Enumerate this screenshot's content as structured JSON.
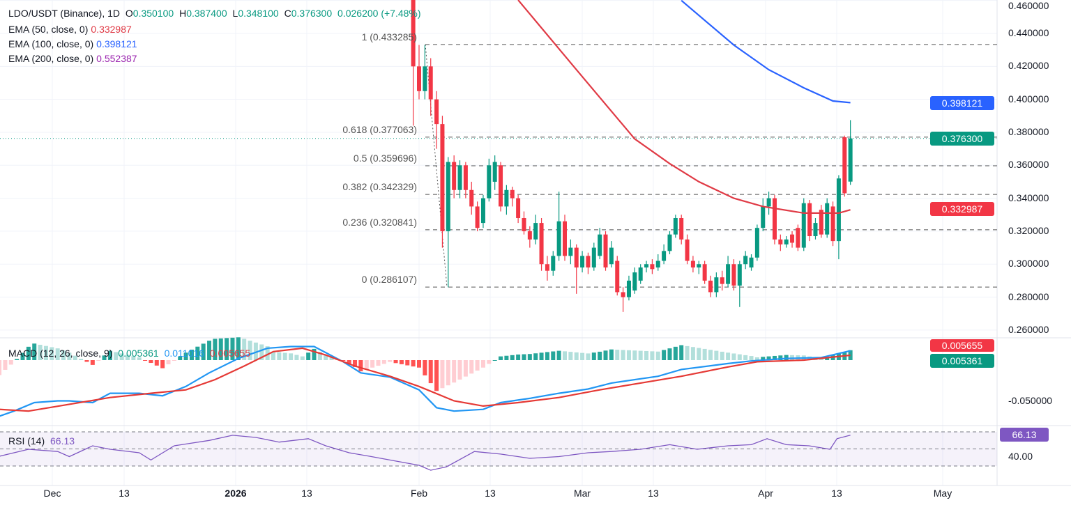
{
  "header": {
    "symbol": "LDO/USDT (Binance), 1D",
    "o_label": "O",
    "open": "0.350100",
    "h_label": "H",
    "high": "0.387400",
    "l_label": "L",
    "low": "0.348100",
    "c_label": "C",
    "close": "0.376300",
    "change": "0.026200 (+7.48%)"
  },
  "indicators": {
    "ema50": {
      "label": "EMA (50, close, 0)",
      "value": "0.332987"
    },
    "ema100": {
      "label": "EMA (100, close, 0)",
      "value": "0.398121"
    },
    "ema200": {
      "label": "EMA (200, close, 0)",
      "value": "0.552387"
    },
    "macd": {
      "label": "MACD (12, 26, close, 9)",
      "hist": "0.005361",
      "macd": "0.011016",
      "signal": "0.005655"
    },
    "rsi": {
      "label": "RSI (14)",
      "value": "66.13"
    }
  },
  "price_axis": [
    "0.460000",
    "0.440000",
    "0.420000",
    "0.400000",
    "0.380000",
    "0.360000",
    "0.340000",
    "0.320000",
    "0.300000",
    "0.280000",
    "0.260000"
  ],
  "badges": {
    "ema100": "0.398121",
    "last": "0.376300",
    "ema50": "0.332987",
    "macd_signal": "0.005655",
    "macd_hist": "0.005361",
    "rsi": "66.13"
  },
  "macd_axis": [
    "-0.050000"
  ],
  "rsi_axis": [
    "40.00"
  ],
  "time_axis": [
    "Dec",
    "13",
    "2026",
    "13",
    "Feb",
    "13",
    "Mar",
    "13",
    "Apr",
    "13",
    "May"
  ],
  "fib_levels": [
    {
      "label": "1 (0.433285)",
      "value": 0.433285
    },
    {
      "label": "0.618 (0.377063)",
      "value": 0.377063
    },
    {
      "label": "0.5 (0.359696)",
      "value": 0.359696
    },
    {
      "label": "0.382 (0.342329)",
      "value": 0.342329
    },
    {
      "label": "0.236 (0.320841)",
      "value": 0.320841
    },
    {
      "label": "0 (0.286107)",
      "value": 0.286107
    }
  ],
  "colors": {
    "up": "#089981",
    "down": "#f23645",
    "ema50": "#e03a45",
    "ema100": "#2962ff",
    "ema200": "#9c27b0",
    "macd": "#2196f3",
    "signal": "#e53935",
    "rsi": "#7e57c2"
  },
  "chart_data": {
    "type": "candlestick",
    "title": "LDO/USDT (Binance), 1D",
    "x_unit": "days since 2026-01-31",
    "ylim": [
      0.26,
      0.46
    ],
    "candles_ohlc": [
      [
        0.47,
        0.48,
        0.384,
        0.42
      ],
      [
        0.42,
        0.433,
        0.4,
        0.405
      ],
      [
        0.405,
        0.433,
        0.4,
        0.42
      ],
      [
        0.42,
        0.425,
        0.39,
        0.4
      ],
      [
        0.4,
        0.405,
        0.37,
        0.385
      ],
      [
        0.385,
        0.39,
        0.31,
        0.32
      ],
      [
        0.32,
        0.365,
        0.286,
        0.362
      ],
      [
        0.362,
        0.366,
        0.34,
        0.345
      ],
      [
        0.345,
        0.363,
        0.34,
        0.36
      ],
      [
        0.36,
        0.362,
        0.34,
        0.345
      ],
      [
        0.345,
        0.35,
        0.33,
        0.335
      ],
      [
        0.335,
        0.338,
        0.32,
        0.322
      ],
      [
        0.325,
        0.342,
        0.322,
        0.34
      ],
      [
        0.34,
        0.364,
        0.338,
        0.36
      ],
      [
        0.35,
        0.366,
        0.345,
        0.362
      ],
      [
        0.36,
        0.362,
        0.332,
        0.335
      ],
      [
        0.335,
        0.348,
        0.33,
        0.345
      ],
      [
        0.345,
        0.347,
        0.335,
        0.34
      ],
      [
        0.34,
        0.342,
        0.325,
        0.328
      ],
      [
        0.328,
        0.332,
        0.318,
        0.32
      ],
      [
        0.32,
        0.323,
        0.31,
        0.315
      ],
      [
        0.315,
        0.33,
        0.312,
        0.325
      ],
      [
        0.325,
        0.328,
        0.296,
        0.3
      ],
      [
        0.3,
        0.305,
        0.29,
        0.296
      ],
      [
        0.296,
        0.308,
        0.293,
        0.305
      ],
      [
        0.305,
        0.344,
        0.302,
        0.326
      ],
      [
        0.326,
        0.33,
        0.302,
        0.305
      ],
      [
        0.305,
        0.315,
        0.3,
        0.31
      ],
      [
        0.31,
        0.312,
        0.282,
        0.298
      ],
      [
        0.298,
        0.308,
        0.295,
        0.305
      ],
      [
        0.305,
        0.307,
        0.294,
        0.298
      ],
      [
        0.298,
        0.313,
        0.296,
        0.31
      ],
      [
        0.305,
        0.322,
        0.303,
        0.318
      ],
      [
        0.318,
        0.32,
        0.296,
        0.298
      ],
      [
        0.3,
        0.314,
        0.298,
        0.31
      ],
      [
        0.302,
        0.305,
        0.281,
        0.283
      ],
      [
        0.283,
        0.286,
        0.271,
        0.28
      ],
      [
        0.28,
        0.293,
        0.278,
        0.29
      ],
      [
        0.284,
        0.298,
        0.282,
        0.295
      ],
      [
        0.29,
        0.3,
        0.288,
        0.298
      ],
      [
        0.298,
        0.302,
        0.295,
        0.3
      ],
      [
        0.3,
        0.303,
        0.294,
        0.297
      ],
      [
        0.298,
        0.306,
        0.296,
        0.302
      ],
      [
        0.302,
        0.312,
        0.3,
        0.308
      ],
      [
        0.308,
        0.32,
        0.306,
        0.318
      ],
      [
        0.318,
        0.33,
        0.316,
        0.328
      ],
      [
        0.328,
        0.33,
        0.312,
        0.315
      ],
      [
        0.315,
        0.318,
        0.3,
        0.302
      ],
      [
        0.302,
        0.305,
        0.295,
        0.298
      ],
      [
        0.298,
        0.302,
        0.294,
        0.3
      ],
      [
        0.3,
        0.302,
        0.288,
        0.29
      ],
      [
        0.29,
        0.293,
        0.28,
        0.283
      ],
      [
        0.283,
        0.295,
        0.28,
        0.292
      ],
      [
        0.292,
        0.296,
        0.284,
        0.288
      ],
      [
        0.288,
        0.305,
        0.286,
        0.3
      ],
      [
        0.3,
        0.303,
        0.284,
        0.287
      ],
      [
        0.287,
        0.302,
        0.274,
        0.3
      ],
      [
        0.3,
        0.308,
        0.297,
        0.305
      ],
      [
        0.298,
        0.306,
        0.296,
        0.304
      ],
      [
        0.304,
        0.324,
        0.302,
        0.322
      ],
      [
        0.322,
        0.34,
        0.32,
        0.335
      ],
      [
        0.335,
        0.344,
        0.33,
        0.34
      ],
      [
        0.34,
        0.342,
        0.312,
        0.315
      ],
      [
        0.315,
        0.318,
        0.308,
        0.312
      ],
      [
        0.312,
        0.317,
        0.31,
        0.315
      ],
      [
        0.318,
        0.32,
        0.31,
        0.313
      ],
      [
        0.322,
        0.324,
        0.308,
        0.31
      ],
      [
        0.31,
        0.34,
        0.308,
        0.337
      ],
      [
        0.337,
        0.339,
        0.314,
        0.317
      ],
      [
        0.317,
        0.328,
        0.315,
        0.325
      ],
      [
        0.333,
        0.336,
        0.316,
        0.318
      ],
      [
        0.318,
        0.34,
        0.316,
        0.337
      ],
      [
        0.335,
        0.338,
        0.311,
        0.314
      ],
      [
        0.314,
        0.354,
        0.303,
        0.352
      ],
      [
        0.377,
        0.378,
        0.341,
        0.343
      ],
      [
        0.3501,
        0.3874,
        0.3481,
        0.3763
      ]
    ],
    "ema50": [
      [
        18,
        0.4603
      ],
      [
        28,
        0.418
      ],
      [
        38,
        0.376
      ],
      [
        44,
        0.361
      ],
      [
        49,
        0.35
      ],
      [
        55,
        0.34
      ],
      [
        60,
        0.335
      ],
      [
        67,
        0.331
      ],
      [
        73,
        0.331
      ],
      [
        75,
        0.333
      ]
    ],
    "ema100": [
      [
        46,
        0.46
      ],
      [
        55,
        0.433
      ],
      [
        61,
        0.418
      ],
      [
        67,
        0.407
      ],
      [
        72,
        0.399
      ],
      [
        75,
        0.398
      ]
    ],
    "macd_line": [
      [
        -71,
        -0.066
      ],
      [
        -68.5,
        -0.06
      ],
      [
        -65,
        -0.05
      ],
      [
        -61,
        -0.048
      ],
      [
        -59,
        -0.048
      ],
      [
        -55,
        -0.05
      ],
      [
        -52,
        -0.039
      ],
      [
        -47,
        -0.039
      ],
      [
        -43,
        -0.042
      ],
      [
        -39,
        -0.031
      ],
      [
        -35,
        -0.015
      ],
      [
        -30,
        0.002
      ],
      [
        -25,
        0.014
      ],
      [
        -21,
        0.016
      ],
      [
        -17,
        0.016
      ],
      [
        -12,
        -0.002
      ],
      [
        -9,
        -0.015
      ],
      [
        -4,
        -0.02
      ],
      [
        1,
        -0.035
      ],
      [
        4,
        -0.056
      ],
      [
        7,
        -0.06
      ],
      [
        12,
        -0.058
      ],
      [
        15,
        -0.05
      ],
      [
        20,
        -0.045
      ],
      [
        25,
        -0.039
      ],
      [
        30,
        -0.034
      ],
      [
        34,
        -0.027
      ],
      [
        42,
        -0.019
      ],
      [
        46,
        -0.011
      ],
      [
        54,
        -0.004
      ],
      [
        58,
        -0.001
      ],
      [
        64,
        0.002
      ],
      [
        70,
        0.003
      ],
      [
        75,
        0.011
      ]
    ],
    "signal_line": [
      [
        -71,
        -0.058
      ],
      [
        -66,
        -0.06
      ],
      [
        -59,
        -0.052
      ],
      [
        -52,
        -0.044
      ],
      [
        -45,
        -0.039
      ],
      [
        -39,
        -0.035
      ],
      [
        -34,
        -0.023
      ],
      [
        -29,
        -0.007
      ],
      [
        -24,
        0.01
      ],
      [
        -19,
        0.014
      ],
      [
        -15,
        0.006
      ],
      [
        -10,
        -0.007
      ],
      [
        -4,
        -0.019
      ],
      [
        1,
        -0.031
      ],
      [
        7,
        -0.048
      ],
      [
        12,
        -0.054
      ],
      [
        18,
        -0.05
      ],
      [
        25,
        -0.044
      ],
      [
        32,
        -0.035
      ],
      [
        39,
        -0.027
      ],
      [
        46,
        -0.019
      ],
      [
        54,
        -0.008
      ],
      [
        59,
        -0.002
      ],
      [
        67,
        0.0
      ],
      [
        75,
        0.0057
      ]
    ],
    "rsi": [
      [
        -71,
        41.4
      ],
      [
        -66,
        49.6
      ],
      [
        -61,
        47
      ],
      [
        -59,
        41
      ],
      [
        -55,
        53.7
      ],
      [
        -52,
        49.6
      ],
      [
        -47,
        45.5
      ],
      [
        -45,
        37
      ],
      [
        -41,
        53.7
      ],
      [
        -35,
        60
      ],
      [
        -31,
        66
      ],
      [
        -27,
        63.5
      ],
      [
        -23,
        58
      ],
      [
        -18,
        62
      ],
      [
        -15,
        53.7
      ],
      [
        -11,
        45.5
      ],
      [
        -7.5,
        41.4
      ],
      [
        -4,
        37
      ],
      [
        1,
        30.8
      ],
      [
        3,
        25
      ],
      [
        5.7,
        29
      ],
      [
        10.5,
        47
      ],
      [
        15,
        44
      ],
      [
        20,
        39
      ],
      [
        25,
        41
      ],
      [
        30,
        45.5
      ],
      [
        34,
        47
      ],
      [
        39,
        49.6
      ],
      [
        44,
        55
      ],
      [
        48.7,
        49.6
      ],
      [
        54,
        53.7
      ],
      [
        58,
        55
      ],
      [
        60.7,
        62
      ],
      [
        64,
        55
      ],
      [
        67.9,
        53.7
      ],
      [
        71.5,
        49.6
      ],
      [
        72.7,
        62
      ],
      [
        75,
        66.13
      ]
    ],
    "rsi_levels": [
      70,
      50,
      30
    ]
  }
}
